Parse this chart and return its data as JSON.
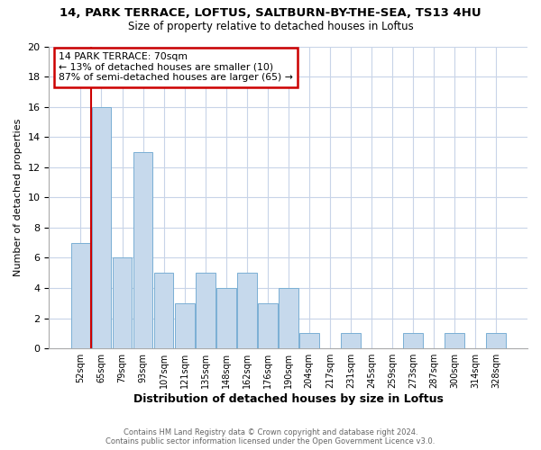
{
  "title1": "14, PARK TERRACE, LOFTUS, SALTBURN-BY-THE-SEA, TS13 4HU",
  "title2": "Size of property relative to detached houses in Loftus",
  "xlabel": "Distribution of detached houses by size in Loftus",
  "ylabel": "Number of detached properties",
  "bins": [
    "52sqm",
    "65sqm",
    "79sqm",
    "93sqm",
    "107sqm",
    "121sqm",
    "135sqm",
    "148sqm",
    "162sqm",
    "176sqm",
    "190sqm",
    "204sqm",
    "217sqm",
    "231sqm",
    "245sqm",
    "259sqm",
    "273sqm",
    "287sqm",
    "300sqm",
    "314sqm",
    "328sqm"
  ],
  "values": [
    7,
    16,
    6,
    13,
    5,
    3,
    5,
    4,
    5,
    3,
    4,
    1,
    0,
    1,
    0,
    0,
    1,
    0,
    1,
    0,
    1
  ],
  "bar_color": "#c6d9ec",
  "bar_edge_color": "#7aafd4",
  "annotation_title": "14 PARK TERRACE: 70sqm",
  "annotation_line1": "← 13% of detached houses are smaller (10)",
  "annotation_line2": "87% of semi-detached houses are larger (65) →",
  "annotation_box_color": "#ffffff",
  "annotation_box_edge_color": "#cc0000",
  "property_line_color": "#cc0000",
  "ylim": [
    0,
    20
  ],
  "yticks": [
    0,
    2,
    4,
    6,
    8,
    10,
    12,
    14,
    16,
    18,
    20
  ],
  "footer1": "Contains HM Land Registry data © Crown copyright and database right 2024.",
  "footer2": "Contains public sector information licensed under the Open Government Licence v3.0.",
  "grid_color": "#c8d4e8",
  "background_color": "#ffffff",
  "title1_fontsize": 9.5,
  "title2_fontsize": 8.5
}
